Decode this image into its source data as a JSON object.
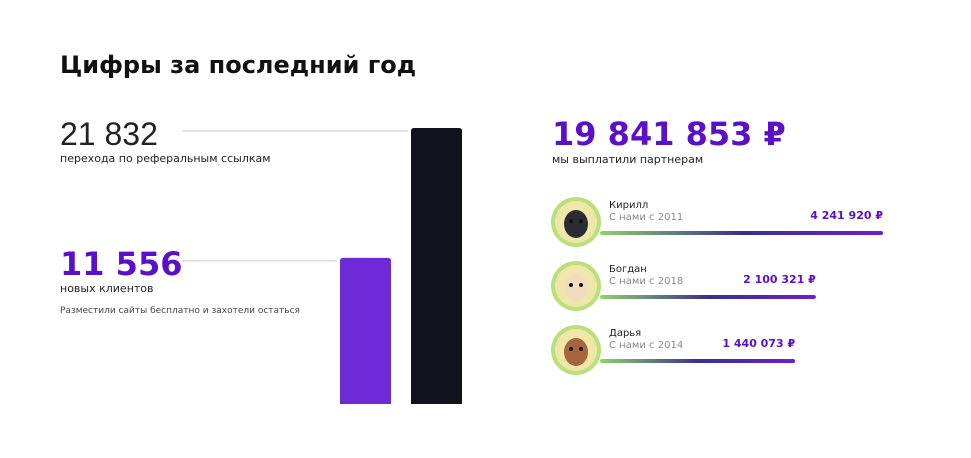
{
  "title": "Цифры за последний год",
  "referrals": {
    "value": 21832,
    "value_label": "21 832",
    "caption": "перехода по реферальным ссылкам",
    "color": "#12121c"
  },
  "clients": {
    "value": 11556,
    "value_label": "11 556",
    "caption": "новых клиентов",
    "note": "Разместили сайты бесплатно и захотели остаться",
    "color": "#6d2ad6"
  },
  "payouts": {
    "value": 19841853,
    "value_label": "19 841 853 ₽",
    "caption": "мы выплатили партнерам"
  },
  "partners": [
    {
      "name": "Кирилл",
      "since": "С нами с 2011",
      "value": 4241920,
      "value_label": "4 241 920 ₽"
    },
    {
      "name": "Богдан",
      "since": "С нами с 2018",
      "value": 2100321,
      "value_label": "2 100 321 ₽"
    },
    {
      "name": "Дарья",
      "since": "С нами с 2014",
      "value": 1440073,
      "value_label": "1 440 073 ₽"
    }
  ]
}
